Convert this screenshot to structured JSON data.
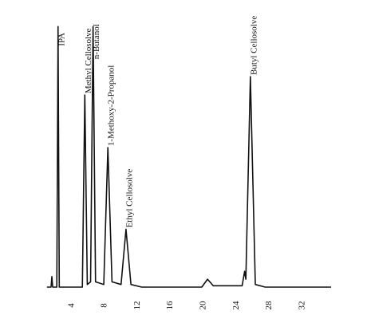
{
  "chart_data": {
    "type": "line",
    "x": [
      1.0,
      1.5,
      1.6,
      1.7,
      2.2,
      2.35,
      2.5,
      5.3,
      5.6,
      5.9,
      6.3,
      6.6,
      6.9,
      7.9,
      8.4,
      8.9,
      10.0,
      10.6,
      11.2,
      12.5,
      19.8,
      20.5,
      21.2,
      24.7,
      25.0,
      25.15,
      25.7,
      26.3,
      27.5,
      35.5
    ],
    "series": [
      {
        "color": "#111111",
        "values": [
          0,
          0,
          4,
          0,
          0,
          99,
          0,
          0,
          73,
          1,
          2,
          99,
          2,
          1,
          53,
          2,
          1,
          22,
          1,
          0,
          0,
          3,
          0.5,
          0.5,
          6,
          3,
          80,
          1,
          0,
          0
        ]
      }
    ],
    "xlim": [
      0,
      35.5
    ],
    "ylim": [
      0,
      100
    ],
    "xticks": [
      4,
      8,
      12,
      16,
      20,
      24,
      28,
      32
    ],
    "annotations": [
      {
        "text": "IPA",
        "x": 2.35,
        "y": 91
      },
      {
        "text": "Methyl Cellosolve",
        "x": 5.6,
        "y": 73
      },
      {
        "text": "n-Butanol",
        "x": 6.6,
        "y": 86
      },
      {
        "text": "1-Methoxy-2-Propanol",
        "x": 8.4,
        "y": 53
      },
      {
        "text": "Ethyl Cellosolve",
        "x": 10.6,
        "y": 22
      },
      {
        "text": "Butyl Cellosolve",
        "x": 25.7,
        "y": 80
      }
    ]
  }
}
